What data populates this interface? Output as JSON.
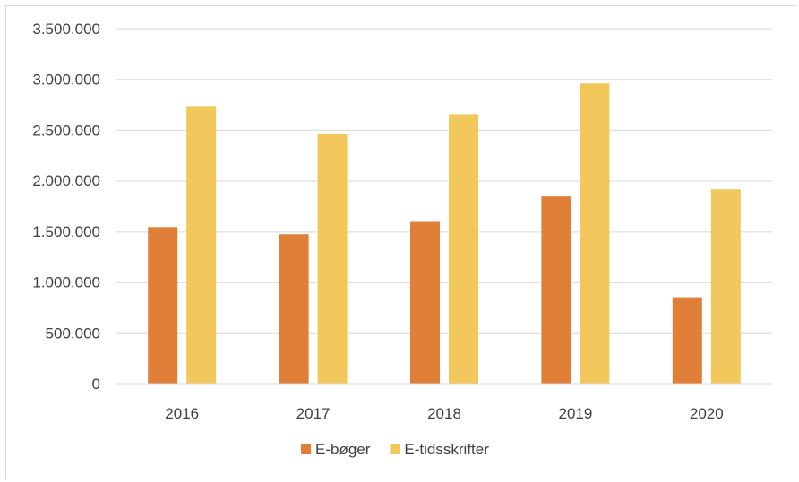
{
  "chart_data": {
    "type": "bar",
    "title": "",
    "xlabel": "",
    "ylabel": "",
    "categories": [
      "2016",
      "2017",
      "2018",
      "2019",
      "2020"
    ],
    "series": [
      {
        "name": "E-bøger",
        "color": "#e07f37",
        "values": [
          1540000,
          1470000,
          1600000,
          1850000,
          850000
        ]
      },
      {
        "name": "E-tidsskrifter",
        "color": "#f2c75c",
        "values": [
          2730000,
          2460000,
          2650000,
          2960000,
          1920000
        ]
      }
    ],
    "ylim": [
      0,
      3500000
    ],
    "yticks": [
      0,
      500000,
      1000000,
      1500000,
      2000000,
      2500000,
      3000000,
      3500000
    ],
    "ytick_labels": [
      "0",
      "500.000",
      "1.000.000",
      "1.500.000",
      "2.000.000",
      "2.500.000",
      "3.000.000",
      "3.500.000"
    ],
    "grid": true,
    "legend_position": "bottom",
    "gridline_color": "#d9d9d9"
  }
}
